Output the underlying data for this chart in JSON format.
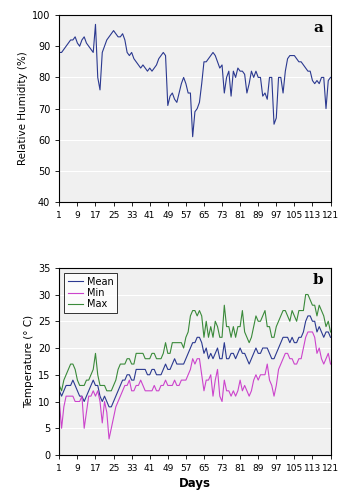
{
  "rh_data": [
    88,
    88,
    89,
    90,
    91,
    92,
    92,
    93,
    91,
    90,
    92,
    93,
    91,
    90,
    89,
    88,
    97,
    80,
    76,
    88,
    90,
    92,
    93,
    94,
    95,
    94,
    93,
    93,
    94,
    92,
    88,
    87,
    88,
    86,
    85,
    84,
    83,
    84,
    83,
    82,
    83,
    82,
    83,
    84,
    86,
    87,
    88,
    87,
    71,
    74,
    75,
    73,
    72,
    75,
    78,
    80,
    78,
    75,
    75,
    61,
    69,
    70,
    72,
    78,
    85,
    85,
    86,
    87,
    88,
    87,
    85,
    83,
    84,
    75,
    80,
    82,
    74,
    82,
    80,
    83,
    82,
    82,
    81,
    75,
    78,
    82,
    80,
    82,
    80,
    80,
    74,
    75,
    73,
    80,
    80,
    65,
    67,
    80,
    80,
    75,
    82,
    86,
    87,
    87,
    87,
    86,
    85,
    85,
    84,
    83,
    82,
    82,
    79,
    78,
    79,
    78,
    80,
    80,
    70,
    79,
    80
  ],
  "mean_data": [
    12,
    11,
    12,
    13,
    13,
    13,
    14,
    13,
    12,
    11,
    11,
    10,
    11,
    12,
    13,
    14,
    13,
    13,
    11,
    10,
    11,
    10,
    9,
    9,
    10,
    11,
    12,
    13,
    14,
    14,
    15,
    15,
    14,
    14,
    16,
    16,
    16,
    16,
    16,
    15,
    15,
    16,
    16,
    15,
    15,
    15,
    16,
    17,
    16,
    16,
    17,
    18,
    17,
    17,
    17,
    17,
    18,
    19,
    20,
    21,
    21,
    22,
    22,
    21,
    19,
    20,
    18,
    19,
    18,
    19,
    20,
    18,
    18,
    21,
    18,
    18,
    19,
    19,
    18,
    19,
    20,
    19,
    19,
    18,
    17,
    18,
    19,
    20,
    19,
    19,
    20,
    20,
    20,
    19,
    18,
    18,
    19,
    20,
    21,
    22,
    22,
    22,
    21,
    22,
    21,
    21,
    22,
    22,
    23,
    25,
    26,
    26,
    25,
    25,
    23,
    24,
    23,
    22,
    23,
    23,
    22
  ],
  "min_data": [
    10,
    5,
    9,
    11,
    11,
    11,
    11,
    10,
    10,
    10,
    11,
    5,
    8,
    11,
    11,
    12,
    11,
    12,
    10,
    6,
    10,
    8,
    3,
    5,
    7,
    9,
    10,
    11,
    12,
    13,
    13,
    14,
    12,
    12,
    13,
    13,
    14,
    13,
    12,
    12,
    12,
    12,
    13,
    12,
    12,
    13,
    13,
    14,
    13,
    13,
    13,
    14,
    13,
    13,
    14,
    14,
    14,
    15,
    16,
    18,
    17,
    18,
    18,
    15,
    12,
    14,
    14,
    15,
    11,
    14,
    16,
    11,
    10,
    14,
    12,
    12,
    11,
    12,
    11,
    12,
    14,
    12,
    13,
    12,
    11,
    12,
    14,
    15,
    14,
    15,
    15,
    15,
    17,
    14,
    13,
    11,
    13,
    16,
    17,
    18,
    19,
    19,
    18,
    18,
    17,
    17,
    18,
    18,
    20,
    22,
    23,
    23,
    23,
    22,
    19,
    20,
    18,
    17,
    18,
    19,
    17
  ],
  "max_data": [
    13,
    12,
    14,
    15,
    16,
    17,
    17,
    16,
    14,
    13,
    13,
    13,
    14,
    14,
    15,
    16,
    19,
    15,
    13,
    13,
    13,
    12,
    12,
    12,
    13,
    14,
    16,
    17,
    17,
    17,
    18,
    18,
    17,
    17,
    19,
    19,
    19,
    19,
    18,
    18,
    18,
    19,
    19,
    18,
    18,
    18,
    19,
    21,
    19,
    19,
    21,
    21,
    21,
    21,
    21,
    20,
    22,
    23,
    26,
    27,
    27,
    26,
    27,
    26,
    22,
    25,
    22,
    24,
    22,
    25,
    24,
    22,
    22,
    28,
    24,
    24,
    22,
    24,
    22,
    24,
    24,
    27,
    23,
    22,
    21,
    22,
    24,
    26,
    25,
    25,
    26,
    27,
    24,
    24,
    22,
    22,
    24,
    25,
    26,
    27,
    27,
    26,
    25,
    27,
    26,
    25,
    27,
    27,
    27,
    30,
    30,
    29,
    28,
    28,
    26,
    28,
    27,
    26,
    24,
    25,
    23
  ],
  "rh_color": "#2b3990",
  "mean_color": "#2b3990",
  "min_color": "#cc44cc",
  "max_color": "#3a8a3a",
  "panel_a_label": "a",
  "panel_b_label": "b",
  "rh_ylabel": "Relative Humidity (%)",
  "temp_ylabel": "Temperature (° C)",
  "xlabel": "Days",
  "rh_ylim": [
    40,
    100
  ],
  "temp_ylim": [
    0,
    35
  ],
  "rh_yticks": [
    40,
    50,
    60,
    70,
    80,
    90,
    100
  ],
  "temp_yticks": [
    0,
    5,
    10,
    15,
    20,
    25,
    30,
    35
  ],
  "xticks": [
    1,
    9,
    17,
    25,
    33,
    41,
    49,
    57,
    65,
    73,
    81,
    89,
    97,
    105,
    113,
    121
  ],
  "legend_entries": [
    "Mean",
    "Min",
    "Max"
  ],
  "bg_color": "#f0f0f0",
  "fig_bg": "#ffffff"
}
